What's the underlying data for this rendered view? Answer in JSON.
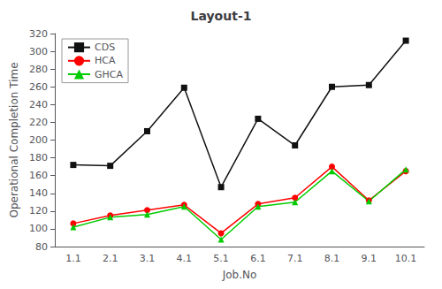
{
  "chart_data": {
    "type": "line",
    "title": "Layout-1",
    "xlabel": "Job.No",
    "ylabel": "Operational Completion Time",
    "categories": [
      "1.1",
      "2.1",
      "3.1",
      "4.1",
      "5.1",
      "6.1",
      "7.1",
      "8.1",
      "9.1",
      "10.1"
    ],
    "series": [
      {
        "name": "CDS",
        "color": "#111111",
        "marker": "square",
        "values": [
          172,
          171,
          210,
          259,
          147,
          224,
          194,
          260,
          262,
          312
        ]
      },
      {
        "name": "HCA",
        "color": "#ff0000",
        "marker": "circle",
        "values": [
          106,
          115,
          121,
          127,
          95,
          128,
          135,
          170,
          132,
          165
        ]
      },
      {
        "name": "GHCA",
        "color": "#00cc00",
        "marker": "triangle",
        "values": [
          102,
          113,
          116,
          125,
          88,
          125,
          130,
          165,
          131,
          167
        ]
      }
    ],
    "ylim": [
      80,
      320
    ],
    "yticks": [
      80,
      100,
      120,
      140,
      160,
      180,
      200,
      220,
      240,
      260,
      280,
      300,
      320
    ],
    "grid": false,
    "legend": "upper left"
  }
}
